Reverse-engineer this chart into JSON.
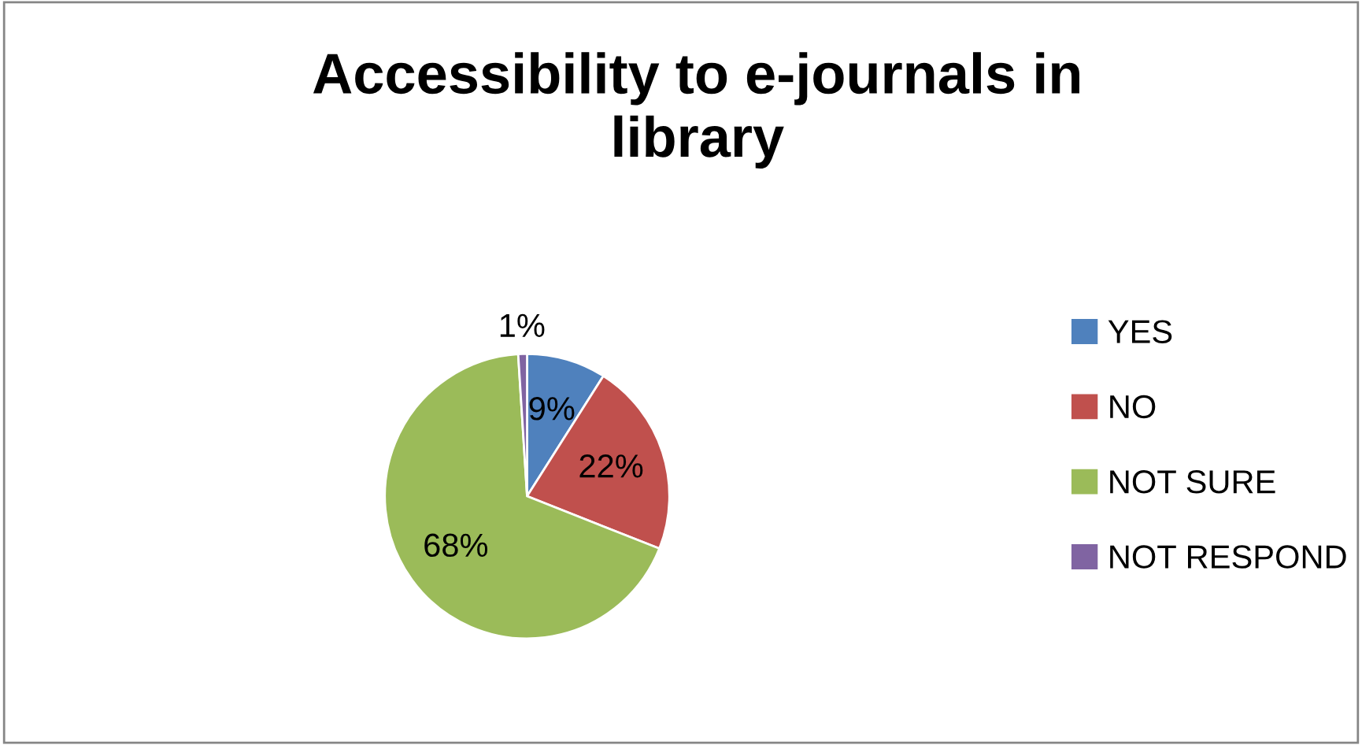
{
  "chart_data": {
    "type": "pie",
    "title": "Accessibility to e-journals in\nlibrary",
    "categories": [
      "YES",
      "NO",
      "NOT SURE",
      "NOT RESPOND"
    ],
    "values": [
      9,
      22,
      68,
      1
    ],
    "colors": [
      "#4f81bd",
      "#c0504d",
      "#9bbb59",
      "#8064a2"
    ],
    "value_labels": [
      "9%",
      "22%",
      "68%",
      "1%"
    ],
    "legend": "right"
  }
}
